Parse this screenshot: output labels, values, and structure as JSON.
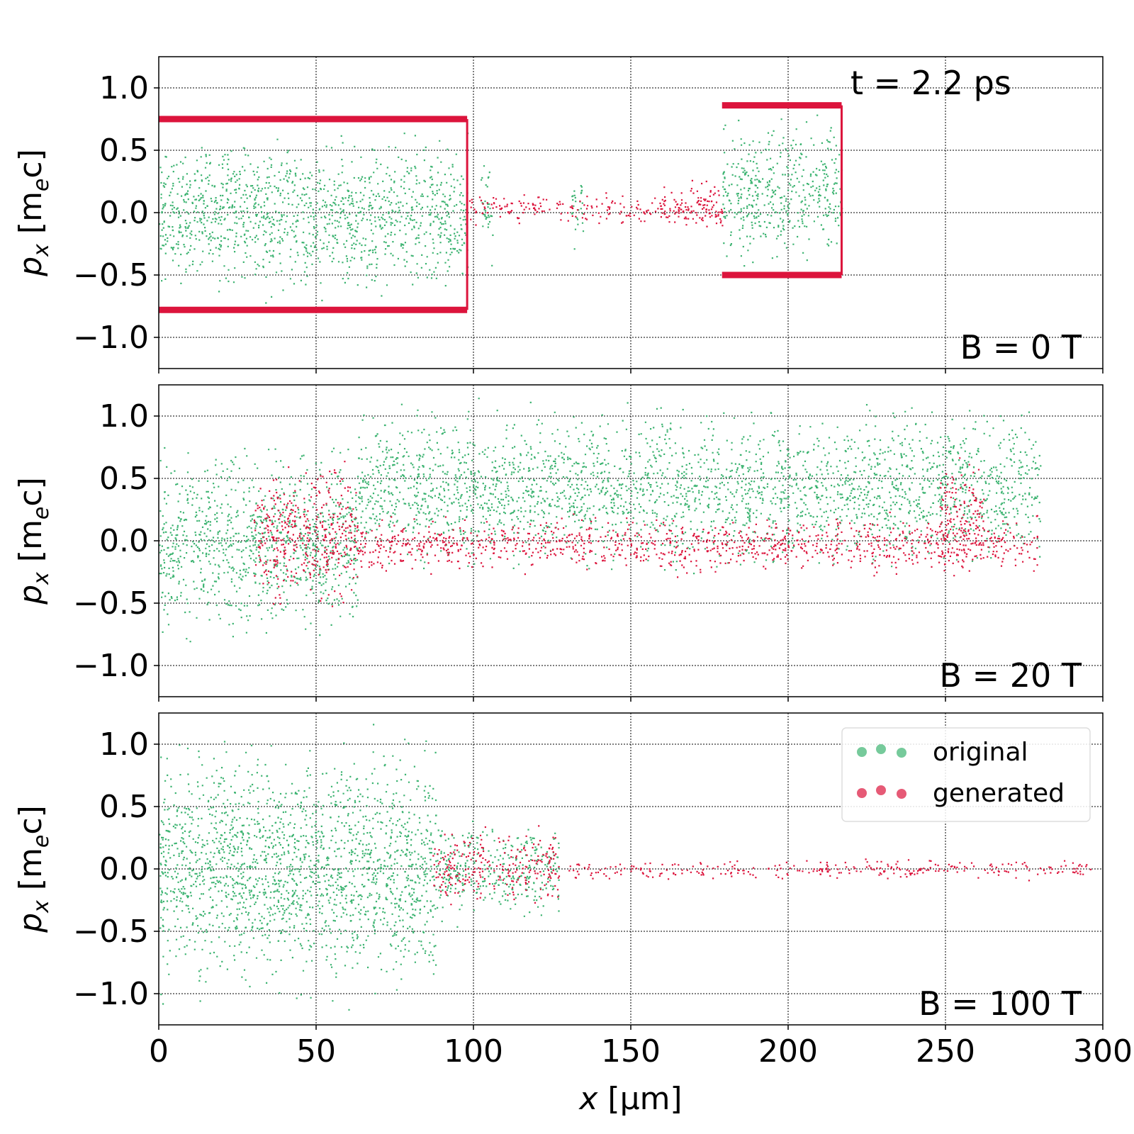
{
  "figure": {
    "time_annotation": "t = 2.2 ps",
    "xlabel_symbol": "x",
    "xlabel_unit": "[μm]",
    "ylabel_symbol": "p",
    "ylabel_subscript": "x",
    "ylabel_unit": "[m",
    "ylabel_unit_subscript": "e",
    "ylabel_unit_tail": "c]",
    "colors": {
      "original": "#3cb371",
      "generated": "#dc143c"
    }
  },
  "legend": {
    "entries": [
      {
        "label": "original",
        "color": "#3cb371"
      },
      {
        "label": "generated",
        "color": "#dc143c"
      }
    ],
    "placement": "upper-right of bottom panel"
  },
  "chart_data": [
    {
      "type": "scatter",
      "panel_label": "B = 0 T",
      "x_unit": "μm",
      "y_unit": "m_e c",
      "xlim": [
        0,
        300
      ],
      "ylim": [
        -1.25,
        1.25
      ],
      "xticks": [
        0,
        50,
        100,
        150,
        200,
        250,
        300
      ],
      "yticks": [
        -1.0,
        -0.5,
        0.0,
        0.5,
        1.0
      ],
      "ytick_labels": [
        "−1.0",
        "−0.5",
        "0.0",
        "0.5",
        "1.0"
      ],
      "grid": true,
      "series": [
        {
          "name": "original",
          "color": "#3cb371",
          "regions": [
            {
              "x": [
                0,
                98
              ],
              "y": [
                -0.78,
                0.75
              ]
            },
            {
              "x": [
                102,
                106
              ],
              "y": [
                -0.5,
                0.55
              ]
            },
            {
              "x": [
                131,
                135
              ],
              "y": [
                -0.35,
                0.45
              ]
            },
            {
              "x": [
                179,
                217
              ],
              "y": [
                -0.5,
                0.86
              ]
            }
          ]
        },
        {
          "name": "generated",
          "color": "#dc143c",
          "regions": [
            {
              "x": [
                98,
                179
              ],
              "y": [
                -0.12,
                0.18
              ]
            },
            {
              "x": [
                160,
                179
              ],
              "y": [
                -0.2,
                0.3
              ]
            }
          ],
          "envelope": [
            {
              "x": [
                0,
                98
              ],
              "top": 0.75,
              "bottom": -0.78
            },
            {
              "x": [
                179,
                217
              ],
              "top": 0.86,
              "bottom": -0.5
            }
          ]
        }
      ]
    },
    {
      "type": "scatter",
      "panel_label": "B = 20 T",
      "x_unit": "μm",
      "y_unit": "m_e c",
      "xlim": [
        0,
        300
      ],
      "ylim": [
        -1.25,
        1.25
      ],
      "xticks": [
        0,
        50,
        100,
        150,
        200,
        250,
        300
      ],
      "yticks": [
        -1.0,
        -0.5,
        0.0,
        0.5,
        1.0
      ],
      "ytick_labels": [
        "−1.0",
        "−0.5",
        "0.0",
        "0.5",
        "1.0"
      ],
      "grid": true,
      "series": [
        {
          "name": "original",
          "color": "#3cb371",
          "regions": [
            {
              "x": [
                0,
                63
              ],
              "y": [
                -0.9,
                0.9
              ]
            },
            {
              "x": [
                63,
                280
              ],
              "y": [
                -0.35,
                1.2
              ]
            }
          ]
        },
        {
          "name": "generated",
          "color": "#dc143c",
          "regions": [
            {
              "x": [
                30,
                63
              ],
              "y": [
                -0.65,
                0.75
              ]
            },
            {
              "x": [
                63,
                279
              ],
              "y": [
                -0.3,
                0.25
              ]
            },
            {
              "x": [
                248,
                262
              ],
              "y": [
                -0.45,
                0.8
              ]
            }
          ]
        }
      ]
    },
    {
      "type": "scatter",
      "panel_label": "B = 100 T",
      "x_unit": "μm",
      "y_unit": "m_e c",
      "xlim": [
        0,
        300
      ],
      "ylim": [
        -1.25,
        1.25
      ],
      "xticks": [
        0,
        50,
        100,
        150,
        200,
        250,
        300
      ],
      "xtick_labels": [
        "0",
        "50",
        "100",
        "150",
        "200",
        "250",
        "300"
      ],
      "yticks": [
        -1.0,
        -0.5,
        0.0,
        0.5,
        1.0
      ],
      "ytick_labels": [
        "−1.0",
        "−0.5",
        "0.0",
        "0.5",
        "1.0"
      ],
      "grid": true,
      "series": [
        {
          "name": "original",
          "color": "#3cb371",
          "regions": [
            {
              "x": [
                0,
                88
              ],
              "y": [
                -1.2,
                1.2
              ]
            },
            {
              "x": [
                88,
                127
              ],
              "y": [
                -0.5,
                0.5
              ]
            }
          ]
        },
        {
          "name": "generated",
          "color": "#dc143c",
          "regions": [
            {
              "x": [
                87,
                127
              ],
              "y": [
                -0.35,
                0.38
              ]
            },
            {
              "x": [
                130,
                296
              ],
              "y": [
                -0.1,
                0.1
              ]
            }
          ]
        }
      ]
    }
  ]
}
